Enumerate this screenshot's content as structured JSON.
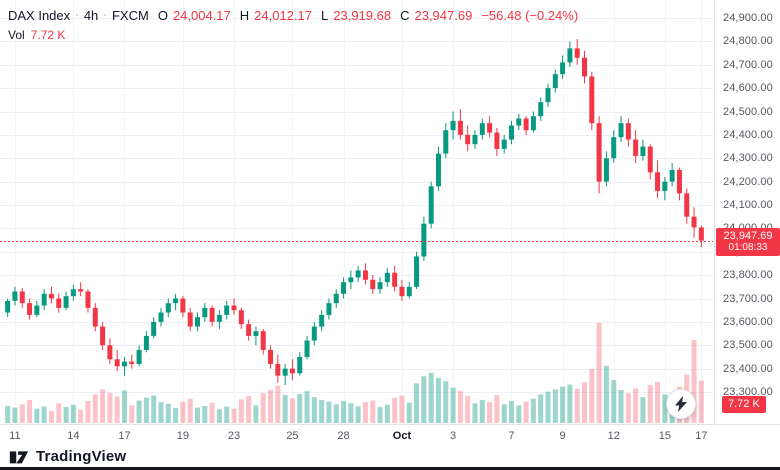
{
  "header": {
    "symbol": "DAX Index",
    "sep": "·",
    "interval": "4h",
    "exchange": "FXCM",
    "o_label": "O",
    "o_value": "24,004.17",
    "h_label": "H",
    "h_value": "24,012.17",
    "l_label": "L",
    "l_value": "23,919.68",
    "c_label": "C",
    "c_value": "23,947.69",
    "change": "−56.48 (−0.24%)",
    "vol_label": "Vol",
    "vol_value": "7.72 K"
  },
  "price_axis": {
    "ticks": [
      {
        "label": "24,900.00",
        "value": 24900
      },
      {
        "label": "24,800.00",
        "value": 24800
      },
      {
        "label": "24,700.00",
        "value": 24700
      },
      {
        "label": "24,600.00",
        "value": 24600
      },
      {
        "label": "24,500.00",
        "value": 24500
      },
      {
        "label": "24,400.00",
        "value": 24400
      },
      {
        "label": "24,300.00",
        "value": 24300
      },
      {
        "label": "24,200.00",
        "value": 24200
      },
      {
        "label": "24,100.00",
        "value": 24100
      },
      {
        "label": "24,000.00",
        "value": 24000
      },
      {
        "label": "23,900.00",
        "value": 23900
      },
      {
        "label": "23,800.00",
        "value": 23800
      },
      {
        "label": "23,700.00",
        "value": 23700
      },
      {
        "label": "23,600.00",
        "value": 23600
      },
      {
        "label": "23,500.00",
        "value": 23500
      },
      {
        "label": "23,400.00",
        "value": 23400
      },
      {
        "label": "23,300.00",
        "value": 23300
      }
    ]
  },
  "time_axis": {
    "ticks": [
      {
        "label": "11",
        "i": 1,
        "major": false
      },
      {
        "label": "14",
        "i": 9,
        "major": false
      },
      {
        "label": "17",
        "i": 16,
        "major": false
      },
      {
        "label": "19",
        "i": 24,
        "major": false
      },
      {
        "label": "23",
        "i": 31,
        "major": false
      },
      {
        "label": "25",
        "i": 39,
        "major": false
      },
      {
        "label": "28",
        "i": 46,
        "major": false
      },
      {
        "label": "Oct",
        "i": 54,
        "major": true
      },
      {
        "label": "3",
        "i": 61,
        "major": false
      },
      {
        "label": "7",
        "i": 69,
        "major": false
      },
      {
        "label": "9",
        "i": 76,
        "major": false
      },
      {
        "label": "12",
        "i": 83,
        "major": false
      },
      {
        "label": "15",
        "i": 90,
        "major": false
      },
      {
        "label": "17",
        "i": 95,
        "major": false
      }
    ]
  },
  "last_price_badge": {
    "price": "23,947.69",
    "countdown": "01:08:33"
  },
  "volume_badge": {
    "label": "7.72 K"
  },
  "footer": {
    "brand": "TradingView"
  },
  "colors": {
    "up": "#089981",
    "down": "#f23645",
    "vol_up": "rgba(8,153,129,0.40)",
    "vol_down": "rgba(242,54,69,0.30)",
    "grid": "#edeff4",
    "grid_v": "#f3f5f9",
    "last_line": "#f23645"
  },
  "chart_data": {
    "type": "candlestick",
    "title": "DAX Index · 4h · FXCM",
    "ylabel": "Price",
    "visible_price_range": [
      23300,
      24900
    ],
    "last_price": 23947.69,
    "countdown": "01:08:33",
    "volume_unit": "K",
    "ohlc_format": "[open, high, low, close, volume_k]",
    "candles": [
      [
        23640,
        23700,
        23620,
        23690,
        3.1
      ],
      [
        23690,
        23750,
        23670,
        23730,
        2.8
      ],
      [
        23730,
        23745,
        23660,
        23680,
        3.4
      ],
      [
        23680,
        23700,
        23610,
        23630,
        4.2
      ],
      [
        23630,
        23690,
        23620,
        23670,
        2.6
      ],
      [
        23670,
        23740,
        23650,
        23720,
        3.0
      ],
      [
        23720,
        23750,
        23680,
        23700,
        2.2
      ],
      [
        23700,
        23720,
        23640,
        23660,
        3.6
      ],
      [
        23660,
        23730,
        23650,
        23710,
        2.9
      ],
      [
        23710,
        23760,
        23690,
        23740,
        3.3
      ],
      [
        23740,
        23770,
        23710,
        23730,
        2.4
      ],
      [
        23730,
        23740,
        23640,
        23660,
        4.0
      ],
      [
        23660,
        23680,
        23560,
        23580,
        5.2
      ],
      [
        23580,
        23600,
        23480,
        23500,
        6.1
      ],
      [
        23500,
        23530,
        23420,
        23440,
        5.5
      ],
      [
        23440,
        23480,
        23390,
        23410,
        4.8
      ],
      [
        23410,
        23450,
        23370,
        23430,
        5.9
      ],
      [
        23430,
        23460,
        23400,
        23420,
        3.2
      ],
      [
        23420,
        23500,
        23410,
        23480,
        4.1
      ],
      [
        23480,
        23560,
        23470,
        23540,
        4.6
      ],
      [
        23540,
        23620,
        23530,
        23600,
        5.0
      ],
      [
        23600,
        23660,
        23580,
        23640,
        3.8
      ],
      [
        23640,
        23700,
        23620,
        23680,
        3.5
      ],
      [
        23680,
        23720,
        23650,
        23700,
        2.7
      ],
      [
        23700,
        23710,
        23620,
        23640,
        3.9
      ],
      [
        23640,
        23660,
        23560,
        23580,
        4.4
      ],
      [
        23580,
        23640,
        23560,
        23620,
        2.8
      ],
      [
        23620,
        23680,
        23600,
        23660,
        3.1
      ],
      [
        23660,
        23670,
        23580,
        23600,
        3.7
      ],
      [
        23600,
        23650,
        23570,
        23630,
        2.5
      ],
      [
        23630,
        23690,
        23610,
        23670,
        3.0
      ],
      [
        23670,
        23700,
        23630,
        23650,
        2.6
      ],
      [
        23650,
        23660,
        23570,
        23590,
        4.3
      ],
      [
        23590,
        23610,
        23520,
        23540,
        4.9
      ],
      [
        23540,
        23580,
        23500,
        23560,
        3.2
      ],
      [
        23560,
        23570,
        23460,
        23480,
        5.4
      ],
      [
        23480,
        23500,
        23400,
        23420,
        6.0
      ],
      [
        23420,
        23460,
        23340,
        23370,
        6.8
      ],
      [
        23370,
        23420,
        23330,
        23400,
        5.1
      ],
      [
        23400,
        23440,
        23350,
        23380,
        4.5
      ],
      [
        23380,
        23470,
        23370,
        23450,
        5.3
      ],
      [
        23450,
        23540,
        23440,
        23520,
        5.8
      ],
      [
        23520,
        23600,
        23500,
        23580,
        4.7
      ],
      [
        23580,
        23650,
        23560,
        23630,
        4.2
      ],
      [
        23630,
        23700,
        23610,
        23680,
        3.9
      ],
      [
        23680,
        23740,
        23660,
        23720,
        3.4
      ],
      [
        23720,
        23790,
        23700,
        23770,
        4.0
      ],
      [
        23770,
        23820,
        23740,
        23790,
        3.6
      ],
      [
        23790,
        23840,
        23770,
        23820,
        3.0
      ],
      [
        23820,
        23850,
        23760,
        23780,
        3.8
      ],
      [
        23780,
        23800,
        23720,
        23740,
        4.1
      ],
      [
        23740,
        23790,
        23720,
        23770,
        2.9
      ],
      [
        23770,
        23830,
        23750,
        23810,
        3.3
      ],
      [
        23810,
        23840,
        23730,
        23750,
        4.6
      ],
      [
        23750,
        23780,
        23690,
        23710,
        5.0
      ],
      [
        23710,
        23770,
        23700,
        23750,
        3.7
      ],
      [
        23750,
        23900,
        23740,
        23880,
        7.2
      ],
      [
        23880,
        24050,
        23860,
        24020,
        8.5
      ],
      [
        24020,
        24200,
        24000,
        24180,
        9.1
      ],
      [
        24180,
        24350,
        24160,
        24320,
        8.2
      ],
      [
        24320,
        24450,
        24300,
        24420,
        7.6
      ],
      [
        24420,
        24500,
        24380,
        24460,
        6.4
      ],
      [
        24460,
        24510,
        24380,
        24400,
        5.8
      ],
      [
        24400,
        24440,
        24330,
        24360,
        4.9
      ],
      [
        24360,
        24420,
        24340,
        24400,
        3.6
      ],
      [
        24400,
        24470,
        24380,
        24450,
        4.2
      ],
      [
        24450,
        24480,
        24390,
        24410,
        3.8
      ],
      [
        24410,
        24430,
        24310,
        24340,
        5.1
      ],
      [
        24340,
        24400,
        24320,
        24380,
        3.4
      ],
      [
        24380,
        24460,
        24360,
        24440,
        4.0
      ],
      [
        24440,
        24490,
        24420,
        24470,
        3.2
      ],
      [
        24470,
        24480,
        24400,
        24420,
        3.9
      ],
      [
        24420,
        24500,
        24410,
        24480,
        4.4
      ],
      [
        24480,
        24560,
        24460,
        24540,
        5.2
      ],
      [
        24540,
        24620,
        24520,
        24600,
        5.7
      ],
      [
        24600,
        24680,
        24580,
        24660,
        6.1
      ],
      [
        24660,
        24740,
        24640,
        24710,
        6.6
      ],
      [
        24710,
        24800,
        24690,
        24770,
        7.0
      ],
      [
        24770,
        24810,
        24700,
        24730,
        6.2
      ],
      [
        24730,
        24760,
        24620,
        24650,
        7.4
      ],
      [
        24650,
        24670,
        24420,
        24450,
        9.8
      ],
      [
        24450,
        24480,
        24150,
        24200,
        18.2
      ],
      [
        24200,
        24330,
        24180,
        24300,
        10.4
      ],
      [
        24300,
        24420,
        24280,
        24390,
        7.8
      ],
      [
        24390,
        24480,
        24370,
        24450,
        6.0
      ],
      [
        24450,
        24470,
        24350,
        24380,
        5.4
      ],
      [
        24380,
        24420,
        24280,
        24310,
        6.3
      ],
      [
        24310,
        24380,
        24290,
        24350,
        4.7
      ],
      [
        24350,
        24360,
        24210,
        24240,
        6.9
      ],
      [
        24240,
        24290,
        24130,
        24160,
        7.5
      ],
      [
        24160,
        24220,
        24120,
        24200,
        5.2
      ],
      [
        24200,
        24280,
        24180,
        24250,
        4.8
      ],
      [
        24250,
        24260,
        24120,
        24150,
        6.6
      ],
      [
        24150,
        24170,
        24020,
        24050,
        8.8
      ],
      [
        24050,
        24090,
        23960,
        24004.17,
        15.1
      ],
      [
        24004.17,
        24012.17,
        23919.68,
        23947.69,
        7.72
      ]
    ]
  }
}
